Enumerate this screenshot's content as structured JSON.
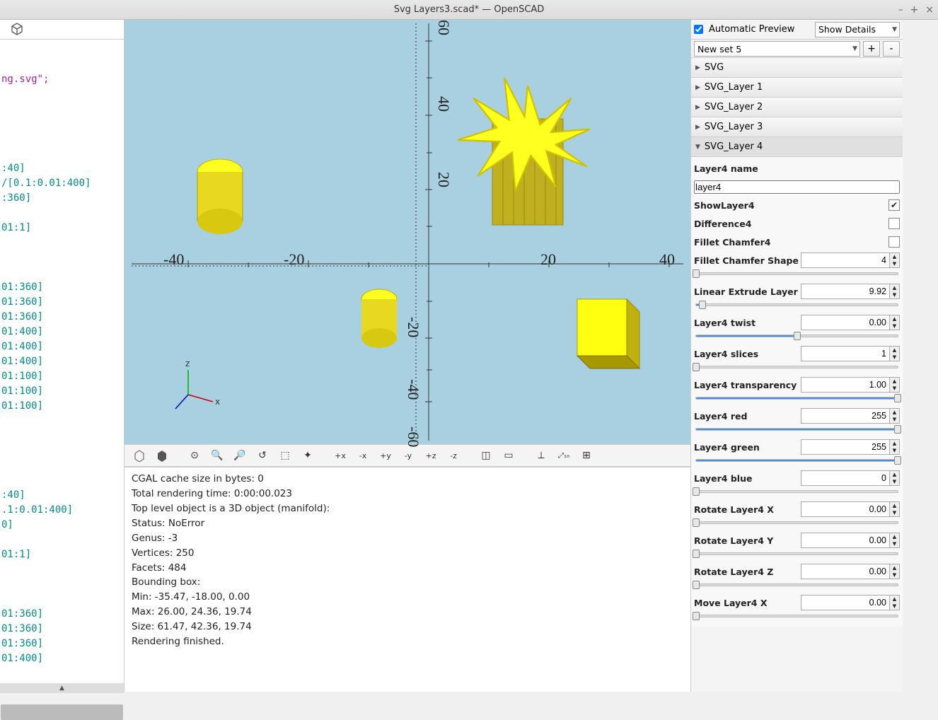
{
  "window": {
    "title": "Svg Layers3.scad* — OpenSCAD",
    "min": "–",
    "max": "+",
    "close": "×"
  },
  "code_lines": [
    "",
    "",
    {
      "type": "str",
      "text": "ng.svg\";"
    },
    "",
    "",
    "",
    "",
    "",
    ":40]",
    "/[0.1:0.01:400]",
    ":360]",
    "",
    "01:1]",
    "",
    "",
    "",
    "01:360]",
    "01:360]",
    "01:360]",
    "01:400]",
    "01:400]",
    "01:400]",
    "01:100]",
    "01:100]",
    "01:100]",
    "",
    "",
    "",
    "",
    "",
    ":40]",
    ".1:0.01:400]",
    "0]",
    "",
    "01:1]",
    "",
    "",
    "",
    "01:360]",
    "01:360]",
    "01:360]",
    "01:400]"
  ],
  "viewport": {
    "bg": "#a8d0e0",
    "axis_labels_x": [
      "-40",
      "-20",
      "20",
      "40"
    ],
    "axis_labels_y": [
      "60",
      "40",
      "20",
      "-20",
      "-40",
      "-60"
    ],
    "gizmo": {
      "x": "x",
      "z": "z"
    }
  },
  "console_lines": [
    "CGAL cache size in bytes: 0",
    "Total rendering time: 0:00:00.023",
    "   Top level object is a 3D object (manifold):",
    "   Status:      NoError",
    "   Genus:       -3",
    "   Vertices:      250",
    "   Facets:        484",
    "Bounding box:",
    "   Min:  -35.47, -18.00, 0.00",
    "   Max:  26.00, 24.36, 19.74",
    "   Size: 61.47, 42.36, 19.74",
    "Rendering finished."
  ],
  "panel": {
    "auto_preview_label": "Automatic Preview",
    "auto_preview_checked": true,
    "show_details": "Show Details",
    "preset": "New set 5",
    "plus": "+",
    "minus": "-",
    "sections": [
      {
        "label": "SVG",
        "open": false
      },
      {
        "label": "SVG_Layer 1",
        "open": false
      },
      {
        "label": "SVG_Layer 2",
        "open": false
      },
      {
        "label": "SVG_Layer 3",
        "open": false
      },
      {
        "label": "SVG_Layer 4",
        "open": true
      }
    ],
    "layer4": {
      "name_label": "Layer4 name",
      "name_value": "layer4",
      "showlayer_label": "ShowLayer4",
      "showlayer_checked": true,
      "difference_label": "Difference4",
      "fillet_label": "Fillet Chamfer4",
      "shape_label": "Fillet Chamfer Shape",
      "shape_value": "4",
      "shape_slider_pct": 0,
      "linextrude_label": "Linear Extrude Layer",
      "linextrude_value": "9.92",
      "linextrude_slider_pct": 3,
      "twist_label": "Layer4 twist",
      "twist_value": "0.00",
      "twist_slider_pct": 50,
      "slices_label": "Layer4 slices",
      "slices_value": "1",
      "slices_slider_pct": 0,
      "transparency_label": "Layer4 transparency",
      "transparency_value": "1.00",
      "transparency_slider_pct": 100,
      "red_label": "Layer4 red",
      "red_value": "255",
      "red_slider_pct": 100,
      "green_label": "Layer4 green",
      "green_value": "255",
      "green_slider_pct": 100,
      "blue_label": "Layer4 blue",
      "blue_value": "0",
      "blue_slider_pct": 0,
      "rotx_label": "Rotate Layer4 X",
      "rotx_value": "0.00",
      "rotx_slider_pct": 0,
      "roty_label": "Rotate Layer4 Y",
      "roty_value": "0.00",
      "roty_slider_pct": 0,
      "rotz_label": "Rotate Layer4 Z",
      "rotz_value": "0.00",
      "rotz_slider_pct": 0,
      "movex_label": "Move Layer4 X",
      "movex_value": "0.00",
      "movex_slider_pct": 0
    }
  }
}
